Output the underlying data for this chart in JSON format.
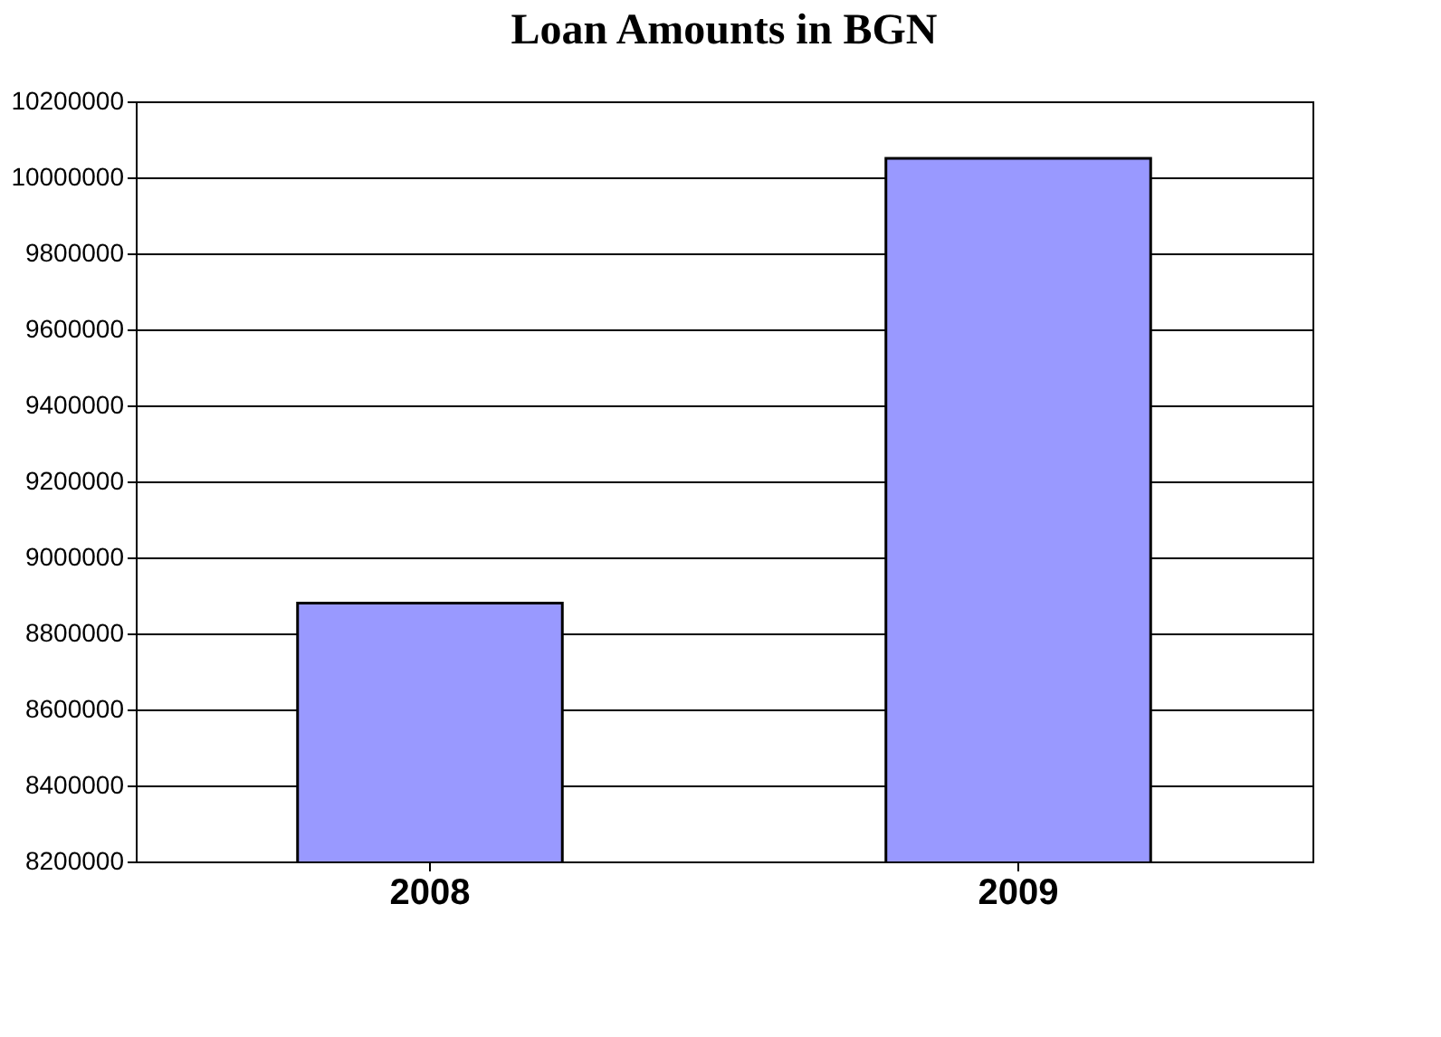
{
  "chart_data": {
    "type": "bar",
    "title": "Loan Amounts in BGN",
    "categories": [
      "2008",
      "2009"
    ],
    "values": [
      8880000,
      10050000
    ],
    "color": "#9999ff",
    "ylim": [
      8200000,
      10200000
    ],
    "yticks": [
      8200000,
      8400000,
      8600000,
      8800000,
      9000000,
      9200000,
      9400000,
      9600000,
      9800000,
      10000000,
      10200000
    ],
    "grid": true
  }
}
